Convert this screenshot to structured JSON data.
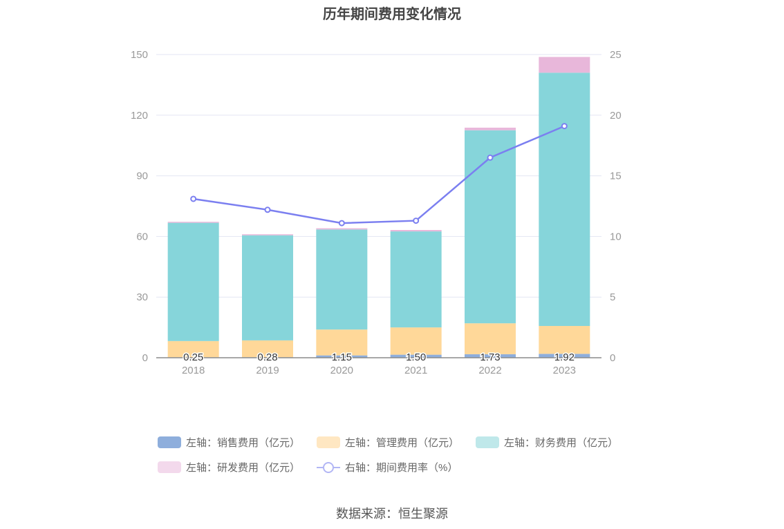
{
  "title": "历年期间费用变化情况",
  "source": "数据来源：恒生聚源",
  "colors": {
    "sales": "#8eaedc",
    "admin": "#ffd899",
    "finance": "#86d5da",
    "rd": "#e8b7da",
    "rate": "#7b7ff0",
    "grid": "#e3e6f3",
    "axis_text": "#999999"
  },
  "legend": [
    {
      "label": "左轴：销售费用（亿元）",
      "color": "#8eaedc",
      "kind": "box"
    },
    {
      "label": "左轴：管理费用（亿元）",
      "color": "#ffe7c2",
      "kind": "box"
    },
    {
      "label": "左轴：财务费用（亿元）",
      "color": "#bfe8ea",
      "kind": "box"
    },
    {
      "label": "左轴：研发费用（亿元）",
      "color": "#f3d9ec",
      "kind": "box"
    },
    {
      "label": "右轴：期间费用率（%）",
      "color": "#b2b6f5",
      "kind": "line"
    }
  ],
  "chart_data": {
    "type": "bar",
    "stacked": true,
    "categories": [
      "2018",
      "2019",
      "2020",
      "2021",
      "2022",
      "2023"
    ],
    "series": [
      {
        "name": "左轴：销售费用（亿元）",
        "axis": "left",
        "values": [
          0.25,
          0.28,
          1.15,
          1.5,
          1.73,
          1.92
        ],
        "data_labels": [
          "0.25",
          "0.28",
          "1.15",
          "1.50",
          "1.73",
          "1.92"
        ]
      },
      {
        "name": "左轴：管理费用（亿元）",
        "axis": "left",
        "values": [
          8.0,
          8.3,
          12.8,
          13.5,
          15.3,
          13.8
        ]
      },
      {
        "name": "左轴：财务费用（亿元）",
        "axis": "left",
        "values": [
          58.5,
          52.0,
          49.5,
          47.5,
          95.5,
          125.3
        ]
      },
      {
        "name": "左轴：研发费用（亿元）",
        "axis": "left",
        "values": [
          0.5,
          0.5,
          0.6,
          0.7,
          1.3,
          7.8
        ]
      },
      {
        "name": "右轴：期间费用率（%）",
        "axis": "right",
        "type": "line",
        "values": [
          13.1,
          12.2,
          11.1,
          11.3,
          16.5,
          19.1
        ]
      }
    ],
    "y_left": {
      "min": 0,
      "max": 150,
      "ticks": [
        "0",
        "30",
        "60",
        "90",
        "120",
        "150"
      ]
    },
    "y_right": {
      "min": 0,
      "max": 25,
      "ticks": [
        "0",
        "5",
        "10",
        "15",
        "20",
        "25"
      ]
    },
    "grid": true,
    "legend_position": "bottom"
  }
}
